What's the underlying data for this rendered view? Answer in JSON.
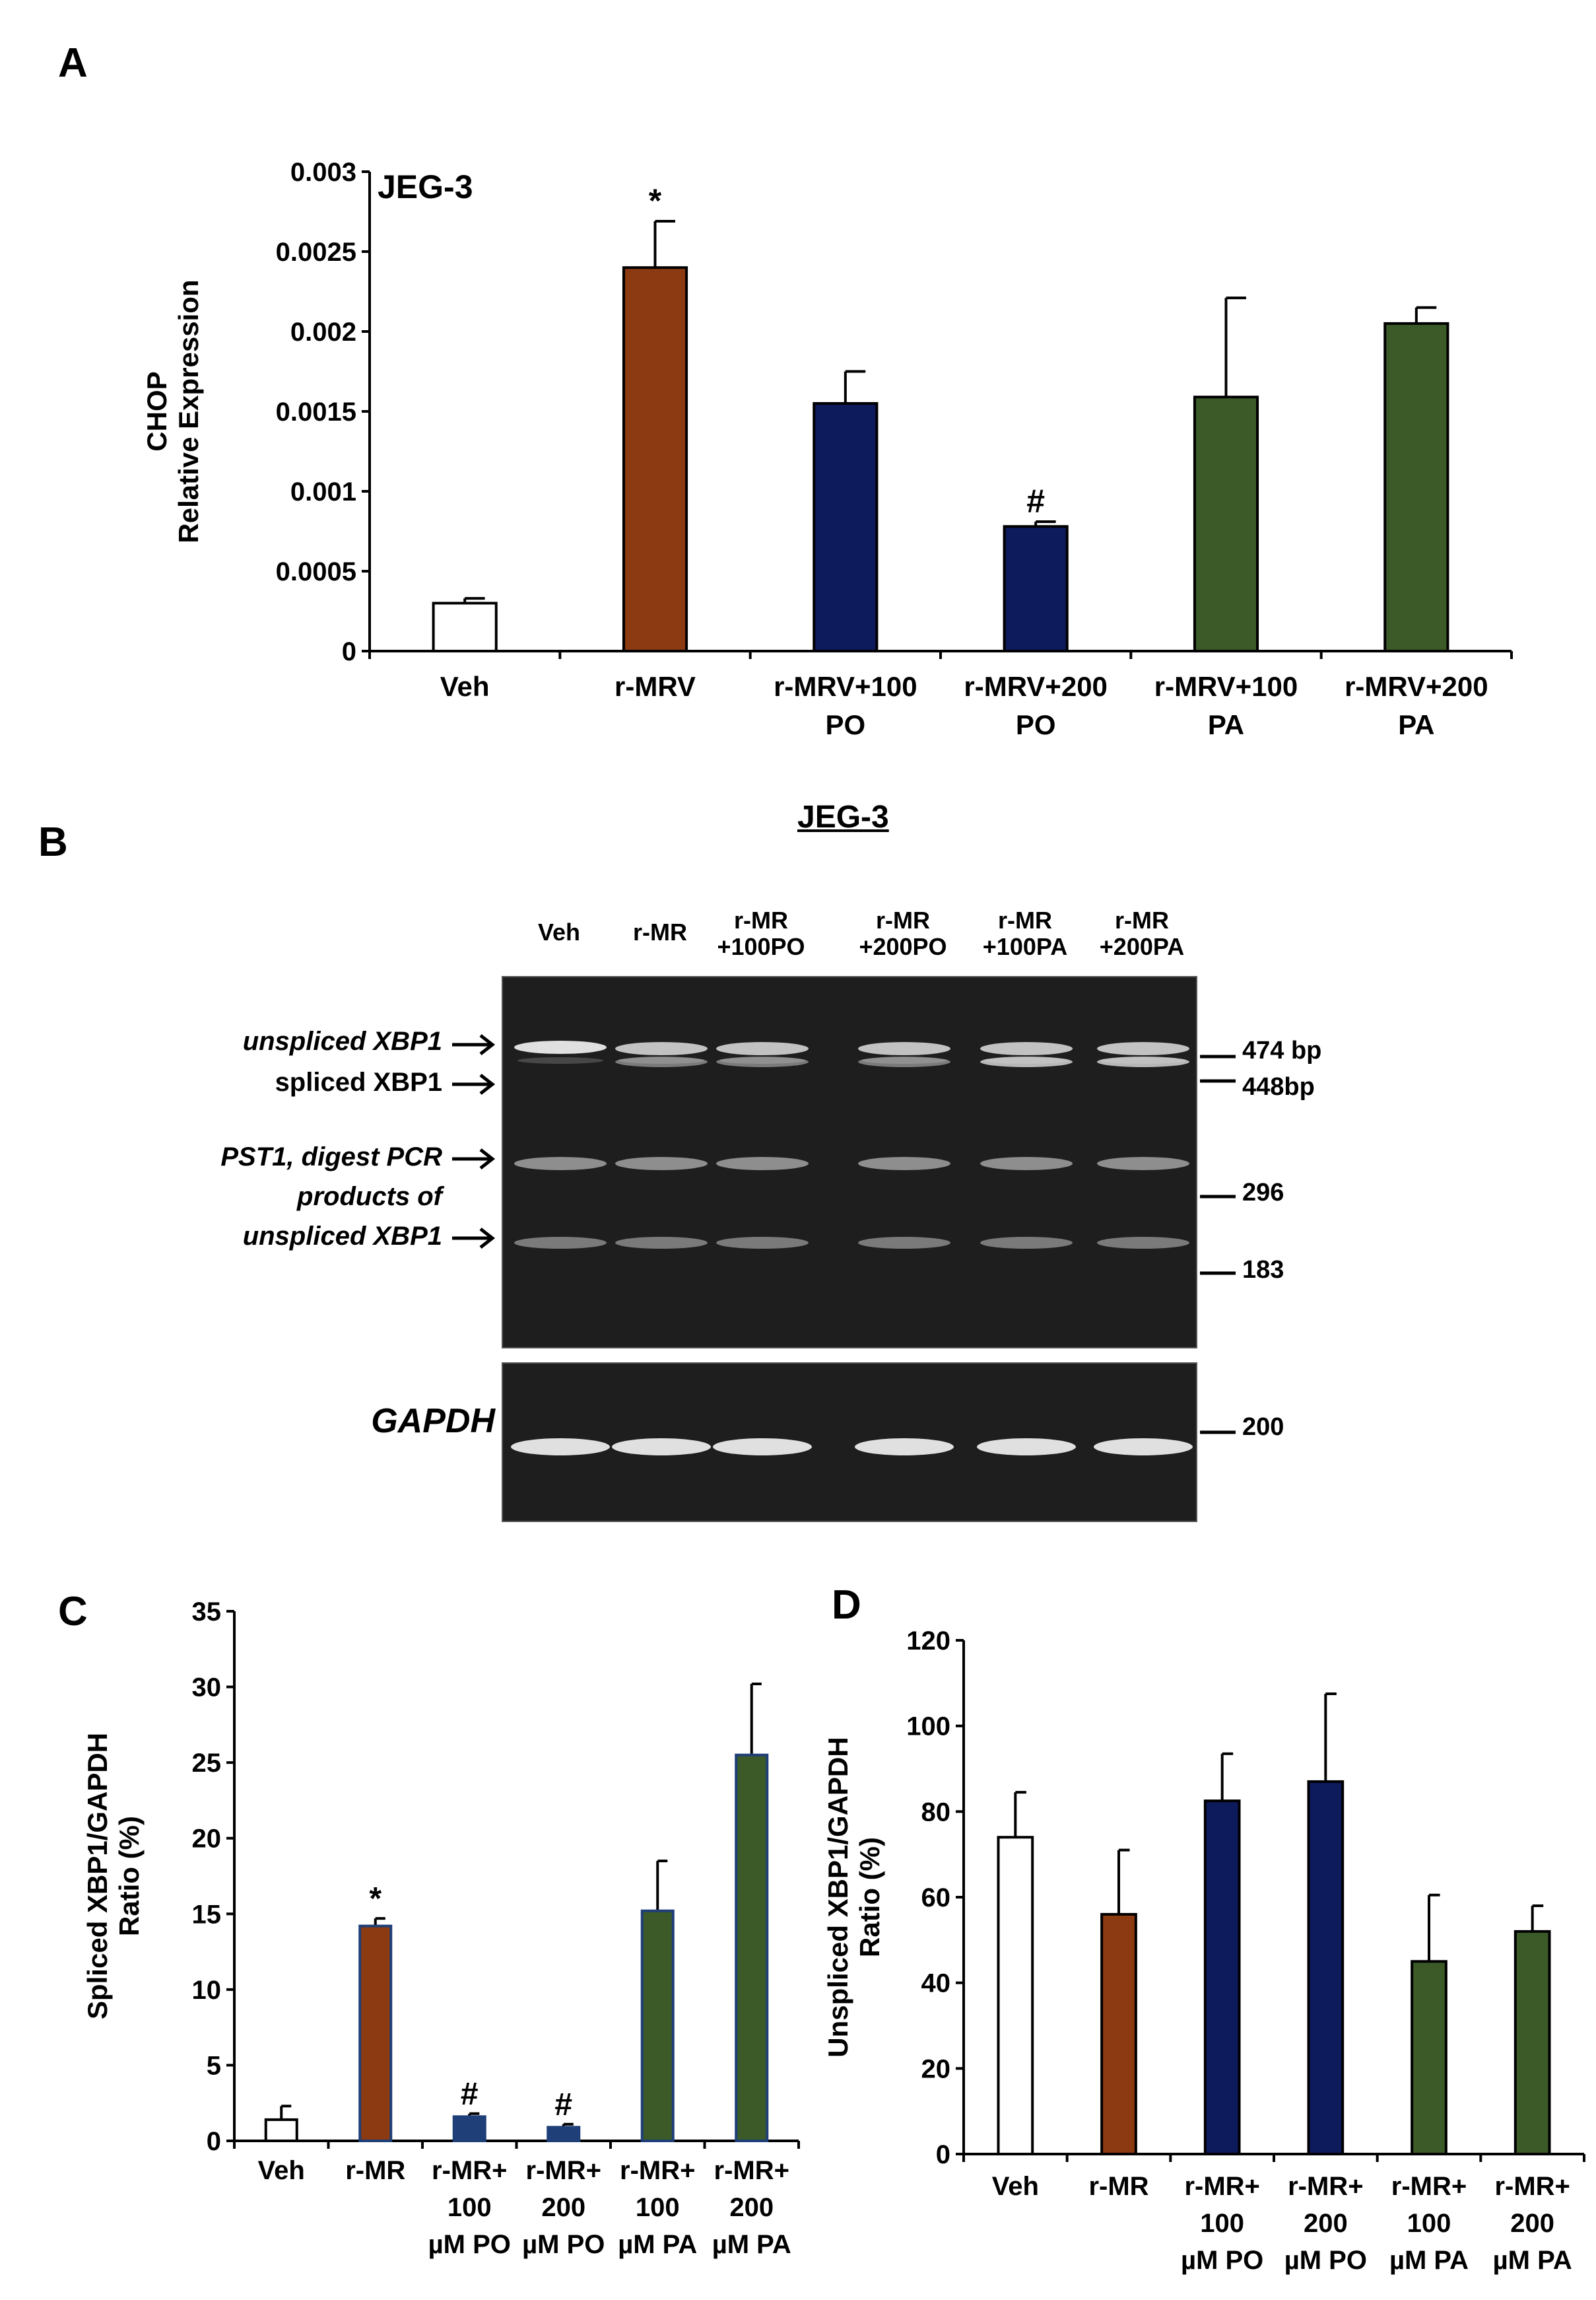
{
  "panels": {
    "a": {
      "letter": "A",
      "cell_line": "JEG-3"
    },
    "b": {
      "letter": "B",
      "title": "JEG-3",
      "lanes": [
        "Veh",
        "r-MR",
        "r-MR\n+100PO",
        "r-MR\n+200PO",
        "r-MR\n+100PA",
        "r-MR\n+200PA"
      ],
      "band_labels": {
        "unspliced": "unspliced XBP1",
        "spliced": "spliced XBP1",
        "pst1_line1": "PST1, digest PCR",
        "pst1_line2": "products of",
        "pst1_line3": "unspliced XBP1",
        "gapdh": "GAPDH"
      },
      "sizes": [
        "474 bp",
        "448bp",
        "296",
        "183",
        "200"
      ]
    },
    "c": {
      "letter": "C"
    },
    "d": {
      "letter": "D"
    }
  },
  "colors": {
    "white_bar": "#ffffff",
    "rmrv": "#8b3a12",
    "po": "#0d1a5c",
    "pa": "#3b5a28",
    "po_c": "#1f3f78",
    "pa_c_border": "#1f3f78"
  },
  "chart_data": [
    {
      "id": "A",
      "type": "bar",
      "title": "JEG-3",
      "ylabel": [
        "CHOP",
        "Relative Expression"
      ],
      "ylim": [
        0,
        0.003
      ],
      "yticks": [
        0,
        0.0005,
        0.001,
        0.0015,
        0.002,
        0.0025,
        0.003
      ],
      "ytick_labels": [
        "0",
        "0.0005",
        "0.001",
        "0.0015",
        "0.002",
        "0.0025",
        "0.003"
      ],
      "categories": [
        [
          "Veh"
        ],
        [
          "r-MRV"
        ],
        [
          "r-MRV+100",
          "PO"
        ],
        [
          "r-MRV+200",
          "PO"
        ],
        [
          "r-MRV+100",
          "PA"
        ],
        [
          "r-MRV+200",
          "PA"
        ]
      ],
      "values": [
        0.0003,
        0.0024,
        0.00155,
        0.00078,
        0.00159,
        0.00205
      ],
      "errors": [
        3e-05,
        0.00029,
        0.0002,
        3e-05,
        0.00062,
        0.0001
      ],
      "colors": [
        "#ffffff",
        "#8b3a12",
        "#0d1a5c",
        "#0d1a5c",
        "#3b5a28",
        "#3b5a28"
      ],
      "annotations": [
        "",
        "*",
        "",
        "#",
        "",
        ""
      ]
    },
    {
      "id": "C",
      "type": "bar",
      "ylabel": [
        "Spliced XBP1/GAPDH",
        "Ratio (%)"
      ],
      "ylim": [
        0,
        35
      ],
      "yticks": [
        0,
        5,
        10,
        15,
        20,
        25,
        30,
        35
      ],
      "ytick_labels": [
        "0",
        "5",
        "10",
        "15",
        "20",
        "25",
        "30",
        "35"
      ],
      "categories": [
        [
          "Veh"
        ],
        [
          "r-MR"
        ],
        [
          "r-MR+",
          "100",
          "µM PO"
        ],
        [
          "r-MR+",
          "200",
          "µM PO"
        ],
        [
          "r-MR+",
          "100",
          "µM PA"
        ],
        [
          "r-MR+",
          "200",
          "µM PA"
        ]
      ],
      "values": [
        1.4,
        14.2,
        1.6,
        0.9,
        15.2,
        25.5
      ],
      "errors": [
        0.9,
        0.5,
        0.2,
        0.2,
        3.3,
        4.7
      ],
      "colors": [
        "#ffffff",
        "#8b3a12",
        "#1f3f78",
        "#1f3f78",
        "#3b5a28",
        "#3b5a28"
      ],
      "annotations": [
        "",
        "*",
        "#",
        "#",
        "",
        ""
      ]
    },
    {
      "id": "D",
      "type": "bar",
      "ylabel": [
        "Unspliced XBP1/GAPDH",
        "Ratio (%)"
      ],
      "ylim": [
        0,
        120
      ],
      "yticks": [
        0,
        20,
        40,
        60,
        80,
        100,
        120
      ],
      "ytick_labels": [
        "0",
        "20",
        "40",
        "60",
        "80",
        "100",
        "120"
      ],
      "categories": [
        [
          "Veh"
        ],
        [
          "r-MR"
        ],
        [
          "r-MR+",
          "100",
          "µM PO"
        ],
        [
          "r-MR+",
          "200",
          "µM PO"
        ],
        [
          "r-MR+",
          "100",
          "µM PA"
        ],
        [
          "r-MR+",
          "200",
          "µM PA"
        ]
      ],
      "values": [
        74,
        56,
        82.5,
        87,
        45,
        52
      ],
      "errors": [
        10.5,
        15,
        11,
        20.5,
        15.5,
        6
      ],
      "colors": [
        "#ffffff",
        "#8b3a12",
        "#0d1a5c",
        "#0d1a5c",
        "#3b5a28",
        "#3b5a28"
      ],
      "annotations": [
        "",
        "",
        "",
        "",
        "",
        ""
      ]
    }
  ]
}
